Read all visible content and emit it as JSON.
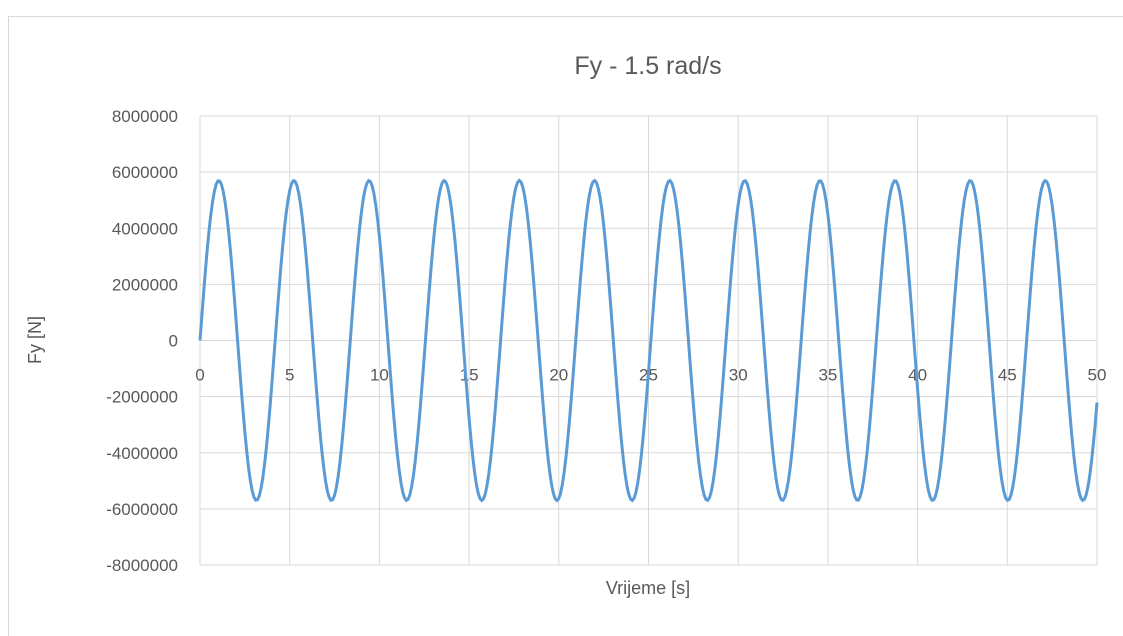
{
  "chart_data": {
    "type": "line",
    "title": "Fy - 1.5 rad/s",
    "xlabel": "Vrijeme [s]",
    "ylabel": "Fy [N]",
    "xlim": [
      0,
      50
    ],
    "ylim": [
      -8000000,
      8000000
    ],
    "x_ticks": [
      "0",
      "5",
      "10",
      "15",
      "20",
      "25",
      "30",
      "35",
      "40",
      "45",
      "50"
    ],
    "y_ticks": [
      "8000000",
      "6000000",
      "4000000",
      "2000000",
      "0",
      "-2000000",
      "-4000000",
      "-6000000",
      "-8000000"
    ],
    "grid": true,
    "legend": "none",
    "series": [
      {
        "function": "Fy = 5700000 · sin(1.5 · t)",
        "amplitude": 5700000,
        "angular_frequency_rad_s": 1.5,
        "x_start": 0,
        "x_end": 50,
        "x_step": 0.1,
        "color": "#5b9bd5"
      }
    ]
  }
}
